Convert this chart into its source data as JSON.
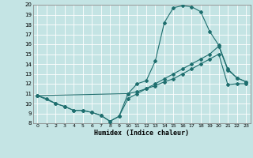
{
  "xlabel": "Humidex (Indice chaleur)",
  "xlim": [
    -0.5,
    23.5
  ],
  "ylim": [
    8,
    20
  ],
  "yticks": [
    8,
    9,
    10,
    11,
    12,
    13,
    14,
    15,
    16,
    17,
    18,
    19,
    20
  ],
  "xticks": [
    0,
    1,
    2,
    3,
    4,
    5,
    6,
    7,
    8,
    9,
    10,
    11,
    12,
    13,
    14,
    15,
    16,
    17,
    18,
    19,
    20,
    21,
    22,
    23
  ],
  "bg_color": "#c4e4e4",
  "line_color": "#1e6e6e",
  "grid_color": "#ffffff",
  "line1_x": [
    0,
    1,
    2,
    3,
    4,
    5,
    6,
    7,
    8,
    9,
    10,
    11,
    12,
    13,
    14,
    15,
    16,
    17,
    18,
    19,
    20,
    21,
    22,
    23
  ],
  "line1_y": [
    10.8,
    10.5,
    10.0,
    9.7,
    9.3,
    9.3,
    9.1,
    8.8,
    8.2,
    8.7,
    10.5,
    11.0,
    11.5,
    11.8,
    12.2,
    12.5,
    13.0,
    13.5,
    14.0,
    14.5,
    15.0,
    11.9,
    12.0,
    12.0
  ],
  "line2_x": [
    0,
    2,
    3,
    4,
    5,
    6,
    7,
    8,
    9,
    10,
    11,
    12,
    13,
    14,
    15,
    16,
    17,
    18,
    19,
    20,
    21,
    22,
    23
  ],
  "line2_y": [
    10.8,
    10.0,
    9.7,
    9.3,
    9.3,
    9.1,
    8.8,
    8.2,
    8.7,
    11.0,
    12.0,
    12.3,
    14.3,
    18.2,
    19.7,
    19.9,
    19.8,
    19.3,
    17.3,
    15.9,
    13.5,
    12.6,
    12.2
  ],
  "line3_x": [
    0,
    10,
    11,
    12,
    13,
    14,
    15,
    16,
    17,
    18,
    19,
    20,
    21,
    22,
    23
  ],
  "line3_y": [
    10.8,
    11.0,
    11.2,
    11.5,
    12.0,
    12.5,
    13.0,
    13.5,
    14.0,
    14.5,
    15.0,
    15.8,
    13.4,
    12.6,
    12.2
  ]
}
